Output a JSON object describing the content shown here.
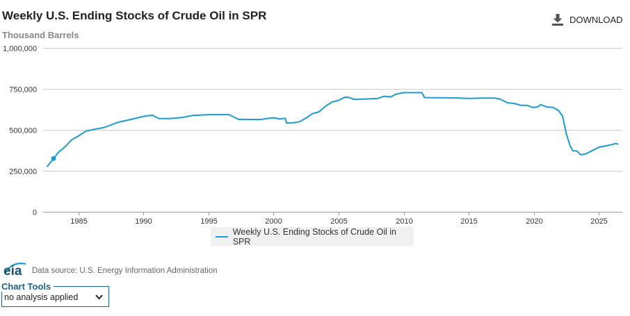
{
  "header": {
    "title": "Weekly U.S. Ending Stocks of Crude Oil in SPR",
    "subtitle": "Thousand Barrels",
    "download_label": "DOWNLOAD"
  },
  "legend": {
    "label": "Weekly U.S. Ending Stocks of Crude Oil in SPR"
  },
  "footer": {
    "logo_text": "eia",
    "source": "Data source: U.S. Energy Information Administration"
  },
  "chart_tools": {
    "label": "Chart Tools",
    "selected": "no analysis applied"
  },
  "colors": {
    "series": "#1a9ad0",
    "grid": "#cccccc",
    "tools": "#1f5f8a"
  },
  "chart_data": {
    "type": "line",
    "title": "Weekly U.S. Ending Stocks of Crude Oil in SPR",
    "ylabel": "Thousand Barrels",
    "xlabel": "",
    "xlim": [
      1982.3,
      2026.8
    ],
    "ylim": [
      0,
      1000000
    ],
    "x_ticks": [
      1985,
      1990,
      1995,
      2000,
      2005,
      2010,
      2015,
      2020,
      2025
    ],
    "y_ticks": [
      0,
      250000,
      500000,
      750000,
      1000000
    ],
    "y_tick_labels": [
      "0",
      "250,000",
      "500,000",
      "750,000",
      "1,000,000"
    ],
    "grid": true,
    "legend_position": "bottom-center",
    "highlight_point": [
      1983.1,
      325000
    ],
    "series": [
      {
        "name": "Weekly U.S. Ending Stocks of Crude Oil in SPR",
        "x": [
          1982.6,
          1983.1,
          1983.5,
          1984.0,
          1984.5,
          1985.0,
          1985.6,
          1986.2,
          1987.0,
          1988.0,
          1989.0,
          1990.0,
          1990.7,
          1991.2,
          1992.0,
          1993.0,
          1993.8,
          1995.0,
          1996.0,
          1996.6,
          1997.3,
          1998.0,
          1999.0,
          1999.6,
          2000.0,
          2000.5,
          2000.9,
          2001.0,
          2001.5,
          2002.0,
          2002.5,
          2003.0,
          2003.5,
          2004.0,
          2004.5,
          2005.0,
          2005.5,
          2005.8,
          2006.2,
          2007.0,
          2008.0,
          2008.5,
          2009.0,
          2009.4,
          2010.0,
          2011.0,
          2011.4,
          2011.6,
          2012.5,
          2013.0,
          2014.0,
          2015.0,
          2016.0,
          2017.0,
          2017.4,
          2018.0,
          2018.5,
          2019.0,
          2019.5,
          2019.9,
          2020.3,
          2020.5,
          2021.0,
          2021.5,
          2021.9,
          2022.2,
          2022.5,
          2022.8,
          2023.0,
          2023.3,
          2023.6,
          2024.0,
          2024.5,
          2025.0,
          2025.5,
          2026.0,
          2026.3,
          2026.5
        ],
        "values": [
          275000,
          325000,
          365000,
          398000,
          440000,
          462000,
          493000,
          503000,
          515000,
          545000,
          563000,
          582000,
          590000,
          569000,
          569000,
          576000,
          588000,
          593000,
          593000,
          593000,
          564000,
          564000,
          563000,
          570000,
          574000,
          566000,
          571000,
          542000,
          543000,
          550000,
          572000,
          599000,
          610000,
          645000,
          670000,
          680000,
          700000,
          698000,
          686000,
          688000,
          692000,
          705000,
          701000,
          718000,
          727000,
          727000,
          727000,
          697000,
          696000,
          696000,
          695000,
          692000,
          694000,
          694000,
          688000,
          665000,
          661000,
          650000,
          649000,
          637000,
          640000,
          654000,
          640000,
          636000,
          618000,
          585000,
          474000,
          400000,
          372000,
          372000,
          348000,
          354000,
          374000,
          394000,
          402000,
          410000,
          417000,
          412000
        ]
      }
    ]
  }
}
